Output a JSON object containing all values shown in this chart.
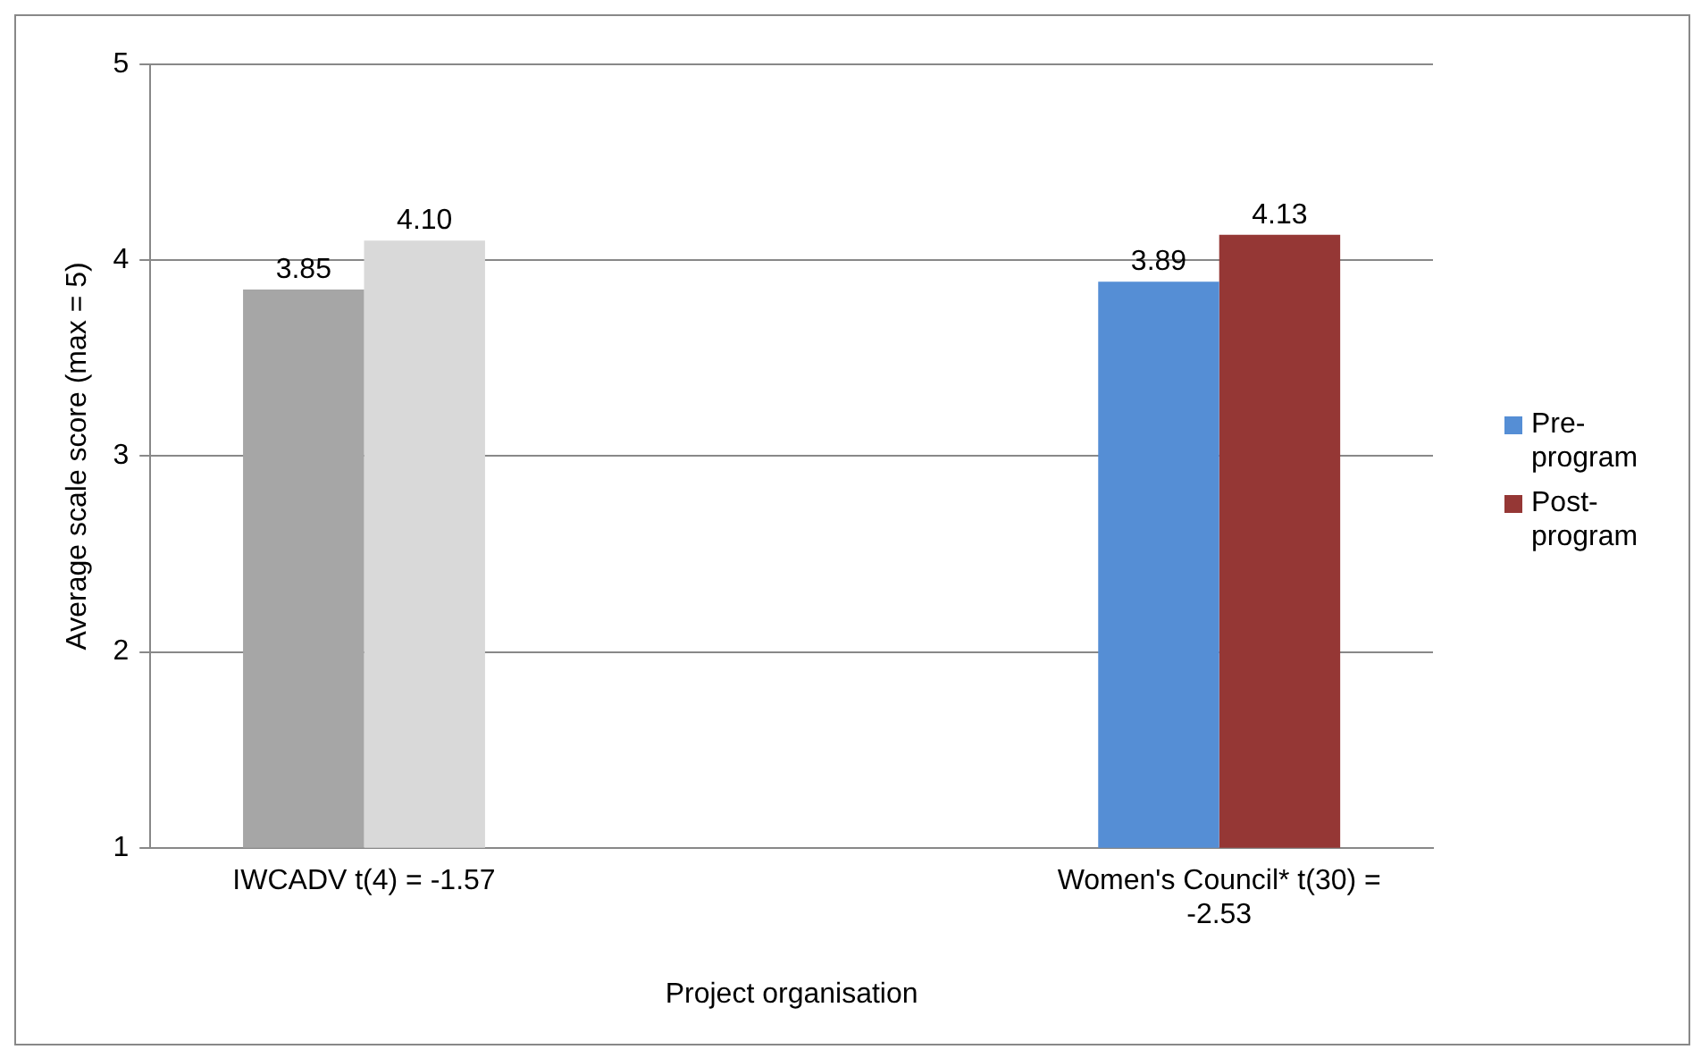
{
  "chart_data": {
    "type": "bar",
    "xlabel": "Project organisation",
    "ylabel": "Average scale score (max = 5)",
    "categories": [
      "IWCADV t(4) = -1.57",
      null,
      "Women's Council* t(30) = -2.53"
    ],
    "series": [
      {
        "name": "Pre-program",
        "color": "#558ed5",
        "colors": [
          "#a6a6a6",
          null,
          "#558ed5"
        ],
        "values": [
          3.85,
          null,
          3.89
        ],
        "value_labels": [
          "3.85",
          null,
          "3.89"
        ]
      },
      {
        "name": "Post-program",
        "color": "#953735",
        "colors": [
          "#d9d9d9",
          null,
          "#953735"
        ],
        "values": [
          4.1,
          null,
          4.13
        ],
        "value_labels": [
          "4.10",
          null,
          "4.13"
        ]
      }
    ],
    "ylim": [
      1,
      5
    ],
    "yticks": [
      1,
      2,
      3,
      4,
      5
    ],
    "grid": "y",
    "legend": "right"
  }
}
